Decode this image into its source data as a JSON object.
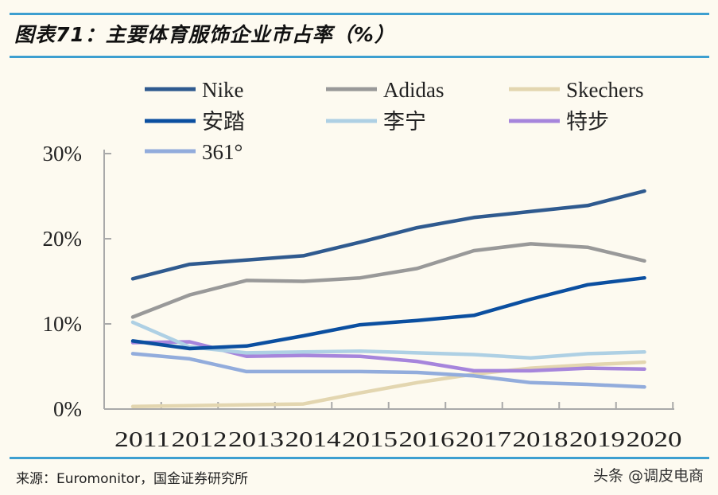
{
  "header": {
    "title": "图表71：主要体育服饰企业市占率（%）"
  },
  "footer": {
    "source": "来源：Euromonitor，国金证券研究所",
    "watermark": "头条 @调皮电商"
  },
  "colors": {
    "rule": "#3d9fd0",
    "background": "#fdfaf0"
  },
  "chart_data": {
    "type": "line",
    "title": "主要体育服饰企业市占率（%）",
    "xlabel": "",
    "ylabel": "",
    "ylim": [
      0,
      30
    ],
    "yticks": [
      "0%",
      "10%",
      "20%",
      "30%"
    ],
    "categories": [
      "2011",
      "2012",
      "2013",
      "2014",
      "2015",
      "2016",
      "2017",
      "2018",
      "2019",
      "2020"
    ],
    "grid": false,
    "legend_position": "top",
    "series": [
      {
        "name": "Nike",
        "color": "#2f5a8f",
        "values": [
          15.3,
          17.0,
          17.5,
          18.0,
          19.6,
          21.3,
          22.5,
          23.2,
          23.9,
          25.6
        ]
      },
      {
        "name": "Adidas",
        "color": "#999999",
        "values": [
          10.8,
          13.4,
          15.1,
          15.0,
          15.4,
          16.5,
          18.6,
          19.4,
          19.0,
          17.4
        ]
      },
      {
        "name": "Skechers",
        "color": "#e3d6b0",
        "values": [
          0.3,
          0.4,
          0.5,
          0.6,
          1.9,
          3.1,
          4.1,
          4.8,
          5.2,
          5.5
        ]
      },
      {
        "name": "安踏",
        "color": "#0b4fa0",
        "values": [
          8.0,
          7.1,
          7.4,
          8.6,
          9.9,
          10.4,
          11.0,
          12.9,
          14.6,
          15.4
        ]
      },
      {
        "name": "李宁",
        "color": "#aed0e4",
        "values": [
          10.2,
          7.3,
          6.6,
          6.7,
          6.8,
          6.6,
          6.4,
          6.0,
          6.5,
          6.7
        ]
      },
      {
        "name": "特步",
        "color": "#a685dc",
        "values": [
          7.8,
          7.9,
          6.2,
          6.3,
          6.2,
          5.6,
          4.5,
          4.5,
          4.8,
          4.7
        ]
      },
      {
        "name": "361°",
        "color": "#92acdc",
        "values": [
          6.5,
          5.9,
          4.4,
          4.4,
          4.4,
          4.3,
          3.9,
          3.1,
          2.9,
          2.6
        ]
      }
    ]
  }
}
